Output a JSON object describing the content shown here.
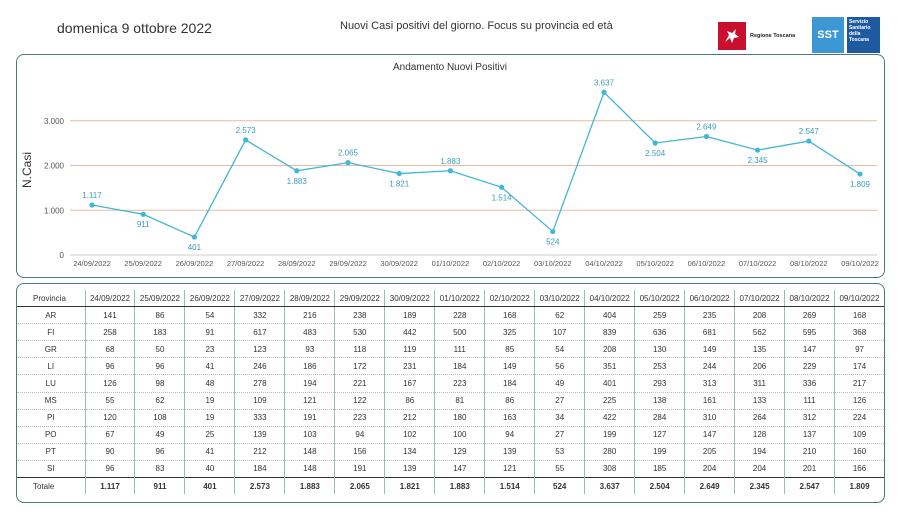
{
  "header": {
    "date": "domenica 9 ottobre 2022",
    "headline": "Nuovi Casi positivi del giorno. Focus su provincia ed età",
    "logo_regione": "Regione Toscana",
    "logo_sst_short": "SST",
    "logo_sst_name": "Servizio Sanitario della Toscana"
  },
  "chart_data": {
    "type": "line",
    "title": "Andamento Nuovi Positivi",
    "ylabel": "N.Casi",
    "xlabel": "",
    "categories": [
      "24/09/2022",
      "25/09/2022",
      "26/09/2022",
      "27/09/2022",
      "28/09/2022",
      "29/09/2022",
      "30/09/2022",
      "01/10/2022",
      "02/10/2022",
      "03/10/2022",
      "04/10/2022",
      "05/10/2022",
      "06/10/2022",
      "07/10/2022",
      "08/10/2022",
      "09/10/2022"
    ],
    "values": [
      1117,
      911,
      401,
      2573,
      1883,
      2065,
      1821,
      1883,
      1514,
      524,
      3637,
      2504,
      2649,
      2345,
      2547,
      1809
    ],
    "data_labels": [
      "1.117",
      "911",
      "401",
      "2.573",
      "1.883",
      "2.065",
      "1.821",
      "1.883",
      "1.514",
      "524",
      "3.637",
      "2.504",
      "2.649",
      "2.345",
      "2.547",
      "1.809"
    ],
    "yticks": [
      0,
      1000,
      2000,
      3000
    ],
    "ytick_labels": [
      "0",
      "1.000",
      "2.000",
      "3.000"
    ],
    "ylim": [
      0,
      3800
    ],
    "grid": true,
    "line_color": "#41b6d6",
    "grid_color": "#e8b9a5"
  },
  "table": {
    "province_header": "Provincia",
    "dates": [
      "24/09/2022",
      "25/09/2022",
      "26/09/2022",
      "27/09/2022",
      "28/09/2022",
      "29/09/2022",
      "30/09/2022",
      "01/10/2022",
      "02/10/2022",
      "03/10/2022",
      "04/10/2022",
      "05/10/2022",
      "06/10/2022",
      "07/10/2022",
      "08/10/2022",
      "09/10/2022"
    ],
    "rows": [
      {
        "name": "AR",
        "values": [
          "141",
          "86",
          "54",
          "332",
          "216",
          "238",
          "189",
          "228",
          "168",
          "62",
          "404",
          "259",
          "235",
          "208",
          "269",
          "168"
        ]
      },
      {
        "name": "FI",
        "values": [
          "258",
          "183",
          "91",
          "617",
          "483",
          "530",
          "442",
          "500",
          "325",
          "107",
          "839",
          "636",
          "681",
          "562",
          "595",
          "368"
        ]
      },
      {
        "name": "GR",
        "values": [
          "68",
          "50",
          "23",
          "123",
          "93",
          "118",
          "119",
          "111",
          "85",
          "54",
          "208",
          "130",
          "149",
          "135",
          "147",
          "97"
        ]
      },
      {
        "name": "LI",
        "values": [
          "96",
          "96",
          "41",
          "246",
          "186",
          "172",
          "231",
          "184",
          "149",
          "56",
          "351",
          "253",
          "244",
          "206",
          "229",
          "174"
        ]
      },
      {
        "name": "LU",
        "values": [
          "126",
          "98",
          "48",
          "278",
          "194",
          "221",
          "167",
          "223",
          "184",
          "49",
          "401",
          "293",
          "313",
          "311",
          "336",
          "217"
        ]
      },
      {
        "name": "MS",
        "values": [
          "55",
          "62",
          "19",
          "109",
          "121",
          "122",
          "86",
          "81",
          "86",
          "27",
          "225",
          "138",
          "161",
          "133",
          "111",
          "126"
        ]
      },
      {
        "name": "PI",
        "values": [
          "120",
          "108",
          "19",
          "333",
          "191",
          "223",
          "212",
          "180",
          "163",
          "34",
          "422",
          "284",
          "310",
          "264",
          "312",
          "224"
        ]
      },
      {
        "name": "PO",
        "values": [
          "67",
          "49",
          "25",
          "139",
          "103",
          "94",
          "102",
          "100",
          "94",
          "27",
          "199",
          "127",
          "147",
          "128",
          "137",
          "109"
        ]
      },
      {
        "name": "PT",
        "values": [
          "90",
          "96",
          "41",
          "212",
          "148",
          "156",
          "134",
          "129",
          "139",
          "53",
          "280",
          "199",
          "205",
          "194",
          "210",
          "160"
        ]
      },
      {
        "name": "SI",
        "values": [
          "96",
          "83",
          "40",
          "184",
          "148",
          "191",
          "139",
          "147",
          "121",
          "55",
          "308",
          "185",
          "204",
          "204",
          "201",
          "166"
        ]
      }
    ],
    "total_label": "Totale",
    "totals": [
      "1.117",
      "911",
      "401",
      "2.573",
      "1.883",
      "2.065",
      "1.821",
      "1.883",
      "1.514",
      "524",
      "3.637",
      "2.504",
      "2.649",
      "2.345",
      "2.547",
      "1.809"
    ]
  }
}
